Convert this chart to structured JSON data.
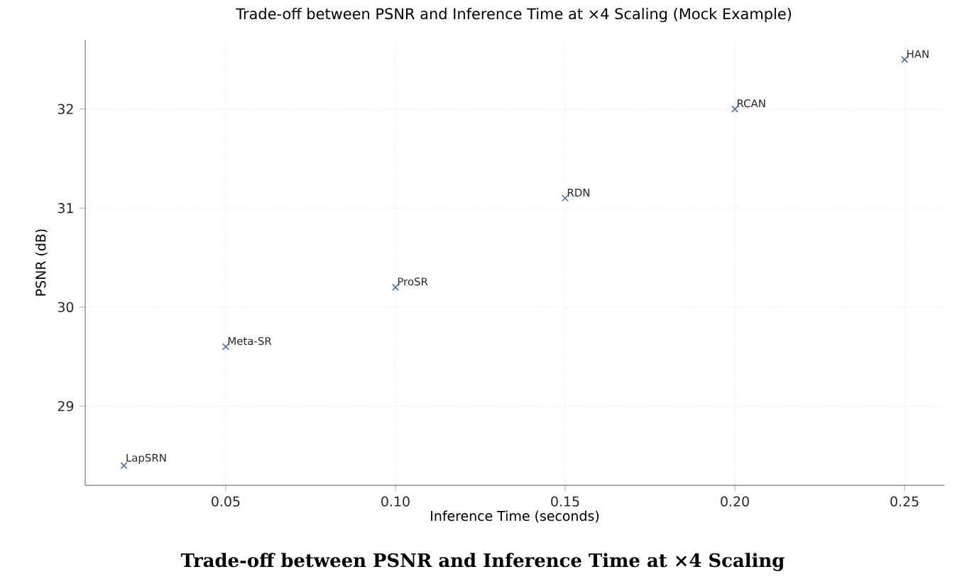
{
  "chart_data": {
    "type": "scatter",
    "title": "Trade-off between PSNR and Inference Time at ×4 Scaling (Mock Example)",
    "xlabel": "Inference Time (seconds)",
    "ylabel": "PSNR (dB)",
    "x": [
      0.02,
      0.05,
      0.1,
      0.15,
      0.2,
      0.25
    ],
    "values": [
      28.4,
      29.6,
      30.2,
      31.1,
      32.0,
      32.5
    ],
    "color": "#4c72b0",
    "marker": "cross",
    "grid": true,
    "xlim": [
      0.0086,
      0.2617
    ],
    "ylim": [
      28.2,
      32.7
    ],
    "xticks": [
      {
        "value": 0.05,
        "label": "0.05"
      },
      {
        "value": 0.1,
        "label": "0.10"
      },
      {
        "value": 0.15,
        "label": "0.15"
      },
      {
        "value": 0.2,
        "label": "0.20"
      },
      {
        "value": 0.25,
        "label": "0.25"
      }
    ],
    "yticks": [
      29,
      30,
      31,
      32
    ],
    "annotations": [
      {
        "text": "LapSRN",
        "x": 0.02,
        "y": 28.4
      },
      {
        "text": "Meta-SR",
        "x": 0.05,
        "y": 29.6
      },
      {
        "text": "ProSR",
        "x": 0.1,
        "y": 30.2
      },
      {
        "text": "RDN",
        "x": 0.15,
        "y": 31.1
      },
      {
        "text": "RCAN",
        "x": 0.2,
        "y": 32.0
      },
      {
        "text": "HAN",
        "x": 0.25,
        "y": 32.5
      },
      "Trade-off between PSNR and Inference Time at ×4 Scaling"
    ]
  }
}
